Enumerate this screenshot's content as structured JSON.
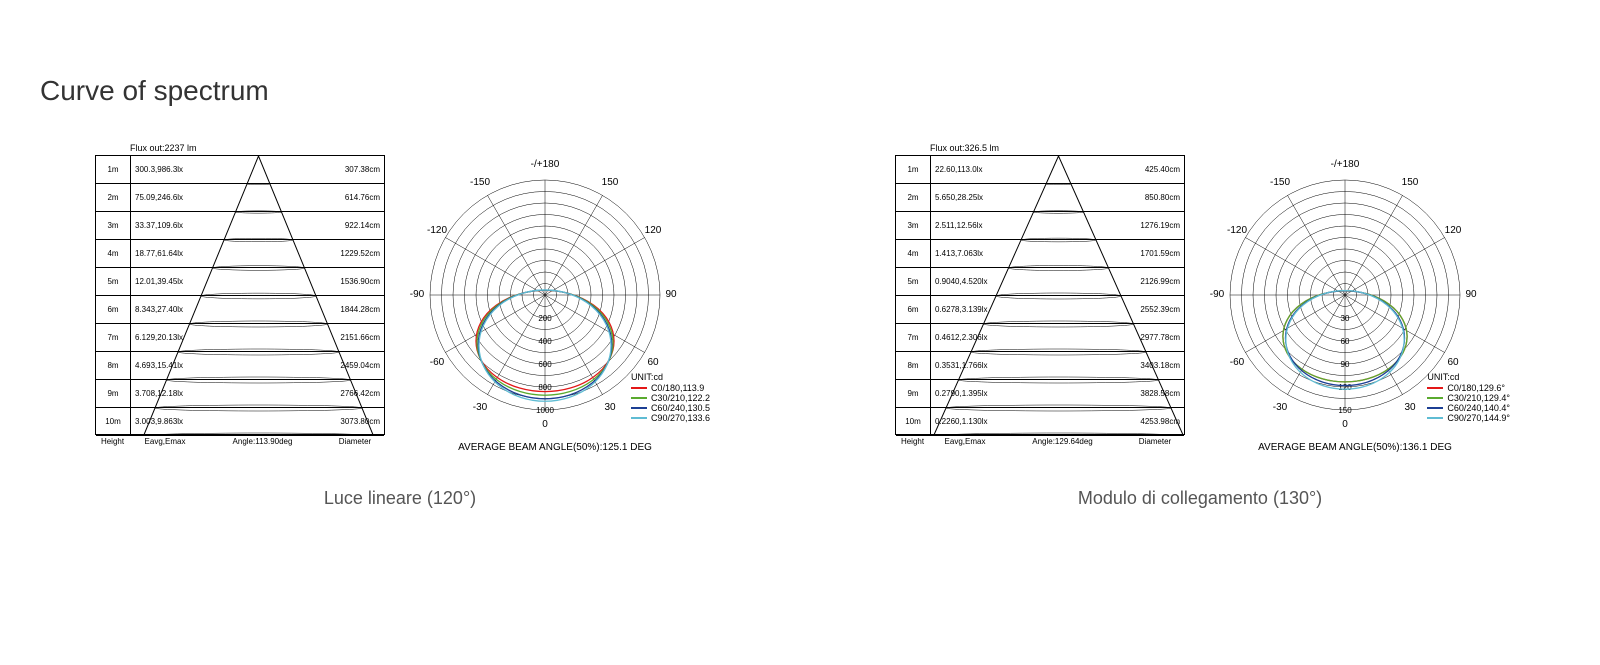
{
  "title": "Curve of spectrum",
  "colors": {
    "red": "#e31818",
    "green": "#5aaa2f",
    "blue": "#1c3f94",
    "cyan": "#5fbcd3",
    "border": "#000000",
    "text": "#333333"
  },
  "panels": [
    {
      "caption": "Luce lineare (120°)",
      "flux": "Flux out:2237 lm",
      "angle_label": "Angle:113.90deg",
      "rows": [
        {
          "h": "1m",
          "lux": "300.3,986.3lx",
          "dia": "307.38cm"
        },
        {
          "h": "2m",
          "lux": "75.09,246.6lx",
          "dia": "614.76cm"
        },
        {
          "h": "3m",
          "lux": "33.37,109.6lx",
          "dia": "922.14cm"
        },
        {
          "h": "4m",
          "lux": "18.77,61.64lx",
          "dia": "1229.52cm"
        },
        {
          "h": "5m",
          "lux": "12.01,39.45lx",
          "dia": "1536.90cm"
        },
        {
          "h": "6m",
          "lux": "8.343,27.40lx",
          "dia": "1844.28cm"
        },
        {
          "h": "7m",
          "lux": "6.129,20.13lx",
          "dia": "2151.66cm"
        },
        {
          "h": "8m",
          "lux": "4.693,15.41lx",
          "dia": "2459.04cm"
        },
        {
          "h": "9m",
          "lux": "3.708,12.18lx",
          "dia": "2766.42cm"
        },
        {
          "h": "10m",
          "lux": "3.003,9.863lx",
          "dia": "3073.80cm"
        }
      ],
      "polar": {
        "angle_labels": [
          "-/+180",
          "150",
          "120",
          "90",
          "60",
          "30",
          "0",
          "-30",
          "-60",
          "-90",
          "-120",
          "-150"
        ],
        "ring_labels": [
          "200",
          "400",
          "600",
          "800",
          "1000"
        ],
        "rings": 10,
        "avg_beam": "AVERAGE BEAM ANGLE(50%):125.1 DEG",
        "unit": "UNIT:cd",
        "legend": [
          {
            "color": "#e31818",
            "label": "C0/180,113.9"
          },
          {
            "color": "#5aaa2f",
            "label": "C30/210,122.2"
          },
          {
            "color": "#1c3f94",
            "label": "C60/240,130.5"
          },
          {
            "color": "#5fbcd3",
            "label": "C90/270,133.6"
          }
        ],
        "curves": [
          {
            "color": "#e31818",
            "scale": 0.8,
            "width": 1.0
          },
          {
            "color": "#5aaa2f",
            "scale": 0.83,
            "width": 0.95
          },
          {
            "color": "#1c3f94",
            "scale": 0.86,
            "width": 0.9
          },
          {
            "color": "#5fbcd3",
            "scale": 0.88,
            "width": 0.87
          }
        ]
      }
    },
    {
      "caption": "Modulo di collegamento (130°)",
      "flux": "Flux out:326.5 lm",
      "angle_label": "Angle:129.64deg",
      "rows": [
        {
          "h": "1m",
          "lux": "22.60,113.0lx",
          "dia": "425.40cm"
        },
        {
          "h": "2m",
          "lux": "5.650,28.25lx",
          "dia": "850.80cm"
        },
        {
          "h": "3m",
          "lux": "2.511,12.56lx",
          "dia": "1276.19cm"
        },
        {
          "h": "4m",
          "lux": "1.413,7.063lx",
          "dia": "1701.59cm"
        },
        {
          "h": "5m",
          "lux": "0.9040,4.520lx",
          "dia": "2126.99cm"
        },
        {
          "h": "6m",
          "lux": "0.6278,3.139lx",
          "dia": "2552.39cm"
        },
        {
          "h": "7m",
          "lux": "0.4612,2.306lx",
          "dia": "2977.78cm"
        },
        {
          "h": "8m",
          "lux": "0.3531,1.766lx",
          "dia": "3403.18cm"
        },
        {
          "h": "9m",
          "lux": "0.2790,1.395lx",
          "dia": "3828.58cm"
        },
        {
          "h": "10m",
          "lux": "0.2260,1.130lx",
          "dia": "4253.98cm"
        }
      ],
      "polar": {
        "angle_labels": [
          "-/+180",
          "150",
          "120",
          "90",
          "60",
          "30",
          "0",
          "-30",
          "-60",
          "-90",
          "-120",
          "-150"
        ],
        "ring_labels": [
          "30",
          "60",
          "90",
          "120",
          "150"
        ],
        "rings": 10,
        "avg_beam": "AVERAGE BEAM ANGLE(50%):136.1 DEG",
        "unit": "UNIT:cd",
        "legend": [
          {
            "color": "#e31818",
            "label": "C0/180,129.6°"
          },
          {
            "color": "#5aaa2f",
            "label": "C30/210,129.4°"
          },
          {
            "color": "#1c3f94",
            "label": "C60/240,140.4°"
          },
          {
            "color": "#5fbcd3",
            "label": "C90/270,144.9°"
          }
        ],
        "curves": [
          {
            "color": "#e31818",
            "scale": 0.72,
            "width": 1.0
          },
          {
            "color": "#5aaa2f",
            "scale": 0.72,
            "width": 1.0
          },
          {
            "color": "#1c3f94",
            "scale": 0.75,
            "width": 0.92
          },
          {
            "color": "#5fbcd3",
            "scale": 0.78,
            "width": 0.88
          }
        ]
      }
    }
  ],
  "col_headers": [
    "Height",
    "Eavg,Emax",
    "angle",
    "Diameter"
  ]
}
